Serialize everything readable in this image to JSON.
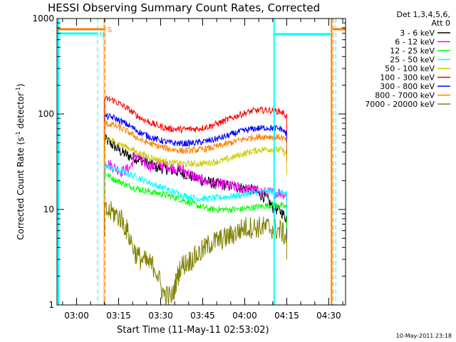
{
  "chart_data": {
    "type": "line",
    "title": "HESSI Observing Summary Count Rates, Corrected",
    "xlabel": "Start Time (11-May-11 02:53:02)",
    "ylabel_main": "Corrected Count Rate (s",
    "ylabel_sup1": "-1",
    "ylabel_mid": " detector",
    "ylabel_sup2": "-1",
    "ylabel_end": ")",
    "yscale": "log",
    "ylim": [
      1,
      1000
    ],
    "y_ticks": [
      {
        "value": 1,
        "label": "1"
      },
      {
        "value": 10,
        "label": "10"
      },
      {
        "value": 100,
        "label": "100"
      },
      {
        "value": 1000,
        "label": "1000"
      }
    ],
    "x_start_label": "02:53:02",
    "xlim_minutes": [
      0,
      103
    ],
    "x_ticks": [
      {
        "minute": 7,
        "label": "03:00"
      },
      {
        "minute": 22,
        "label": "03:15"
      },
      {
        "minute": 37,
        "label": "03:30"
      },
      {
        "minute": 52,
        "label": "03:45"
      },
      {
        "minute": 67,
        "label": "04:00"
      },
      {
        "minute": 82,
        "label": "04:15"
      },
      {
        "minute": 97,
        "label": "04:30"
      }
    ],
    "legend": {
      "header_line1": "Det 1,3,4,5,6,",
      "header_line2": "Att 0",
      "placement": "right"
    },
    "series": [
      {
        "name": "3 - 6 keV",
        "color": "#000000",
        "points": [
          [
            17,
            55
          ],
          [
            20,
            47
          ],
          [
            23,
            40
          ],
          [
            26,
            36
          ],
          [
            30,
            33
          ],
          [
            35,
            28
          ],
          [
            40,
            26
          ],
          [
            45,
            24
          ],
          [
            50,
            21
          ],
          [
            55,
            19
          ],
          [
            60,
            18
          ],
          [
            65,
            17
          ],
          [
            70,
            16
          ],
          [
            75,
            13
          ],
          [
            77,
            10.5
          ],
          [
            80,
            9.5
          ],
          [
            82,
            8
          ]
        ]
      },
      {
        "name": "6 - 12 keV",
        "color": "#ff00ff",
        "points": [
          [
            17,
            32
          ],
          [
            20,
            28
          ],
          [
            23,
            25
          ],
          [
            26,
            27
          ],
          [
            28,
            38
          ],
          [
            30,
            32
          ],
          [
            34,
            28
          ],
          [
            37,
            30
          ],
          [
            40,
            28
          ],
          [
            45,
            26
          ],
          [
            50,
            21
          ],
          [
            55,
            19
          ],
          [
            60,
            18
          ],
          [
            65,
            17
          ],
          [
            70,
            16
          ],
          [
            75,
            15
          ],
          [
            80,
            15
          ],
          [
            82,
            14
          ]
        ]
      },
      {
        "name": "12 - 25 keV",
        "color": "#00ff00",
        "points": [
          [
            17,
            24
          ],
          [
            20,
            21
          ],
          [
            25,
            18
          ],
          [
            30,
            16
          ],
          [
            35,
            15
          ],
          [
            40,
            14
          ],
          [
            45,
            12.5
          ],
          [
            50,
            11
          ],
          [
            55,
            10
          ],
          [
            60,
            10
          ],
          [
            65,
            10
          ],
          [
            70,
            10.5
          ],
          [
            75,
            11
          ],
          [
            80,
            11
          ],
          [
            82,
            10.5
          ]
        ]
      },
      {
        "name": "25 - 50 keV",
        "color": "#00ffff",
        "points": [
          [
            17,
            29
          ],
          [
            20,
            27
          ],
          [
            25,
            24
          ],
          [
            30,
            21
          ],
          [
            35,
            18
          ],
          [
            40,
            16
          ],
          [
            45,
            14
          ],
          [
            50,
            13
          ],
          [
            55,
            13
          ],
          [
            60,
            13.5
          ],
          [
            65,
            14
          ],
          [
            70,
            15
          ],
          [
            75,
            15.5
          ],
          [
            80,
            15
          ],
          [
            82,
            14.5
          ]
        ]
      },
      {
        "name": "50 - 100 keV",
        "color": "#cccc00",
        "points": [
          [
            17,
            55
          ],
          [
            20,
            52
          ],
          [
            25,
            45
          ],
          [
            30,
            38
          ],
          [
            35,
            34
          ],
          [
            40,
            31
          ],
          [
            45,
            30
          ],
          [
            50,
            30
          ],
          [
            55,
            31
          ],
          [
            60,
            33
          ],
          [
            65,
            37
          ],
          [
            70,
            41
          ],
          [
            75,
            43
          ],
          [
            80,
            42
          ],
          [
            82,
            38
          ]
        ]
      },
      {
        "name": "100 - 300 keV",
        "color": "#ff0000",
        "points": [
          [
            17,
            145
          ],
          [
            20,
            140
          ],
          [
            25,
            115
          ],
          [
            30,
            90
          ],
          [
            35,
            77
          ],
          [
            40,
            70
          ],
          [
            45,
            69
          ],
          [
            50,
            70
          ],
          [
            55,
            75
          ],
          [
            60,
            85
          ],
          [
            65,
            98
          ],
          [
            70,
            108
          ],
          [
            75,
            110
          ],
          [
            80,
            106
          ],
          [
            82,
            95
          ]
        ]
      },
      {
        "name": "300 - 800 keV",
        "color": "#0000ff",
        "points": [
          [
            17,
            95
          ],
          [
            20,
            92
          ],
          [
            25,
            78
          ],
          [
            30,
            63
          ],
          [
            35,
            55
          ],
          [
            40,
            50
          ],
          [
            45,
            49
          ],
          [
            50,
            50
          ],
          [
            55,
            53
          ],
          [
            60,
            58
          ],
          [
            65,
            65
          ],
          [
            70,
            70
          ],
          [
            75,
            72
          ],
          [
            80,
            70
          ],
          [
            82,
            62
          ]
        ]
      },
      {
        "name": "800 - 7000 keV",
        "color": "#ff8000",
        "points": [
          [
            17,
            80
          ],
          [
            20,
            77
          ],
          [
            25,
            66
          ],
          [
            30,
            53
          ],
          [
            35,
            47
          ],
          [
            40,
            43
          ],
          [
            45,
            41
          ],
          [
            50,
            42
          ],
          [
            55,
            44
          ],
          [
            60,
            48
          ],
          [
            65,
            53
          ],
          [
            70,
            57
          ],
          [
            75,
            58
          ],
          [
            80,
            57
          ],
          [
            82,
            52
          ]
        ]
      },
      {
        "name": "7000 - 20000 keV",
        "color": "#808000",
        "points": [
          [
            17,
            9.5
          ],
          [
            20,
            9.3
          ],
          [
            23,
            8
          ],
          [
            25,
            6
          ],
          [
            28,
            3.5
          ],
          [
            30,
            3
          ],
          [
            35,
            2.5
          ],
          [
            38,
            1.3
          ],
          [
            41,
            1.2
          ],
          [
            44,
            2.5
          ],
          [
            48,
            3
          ],
          [
            51,
            3.5
          ],
          [
            55,
            4.5
          ],
          [
            60,
            5
          ],
          [
            63,
            5.5
          ],
          [
            67,
            6.5
          ],
          [
            70,
            6.5
          ],
          [
            75,
            6.5
          ],
          [
            78,
            6.2
          ],
          [
            80,
            6
          ],
          [
            82,
            5
          ]
        ]
      }
    ],
    "annotations": {
      "S_label": "S",
      "N_label": "N",
      "solid_cyan_minutes": [
        0.5,
        77.5
      ],
      "dashed_cyan_minutes": [
        14.5,
        99.5
      ],
      "dashed_orange_minutes": [
        17.2,
        98.5
      ],
      "solid_orange_minutes": [
        16.8,
        98
      ],
      "footer_timestamp": "10-May-2011 23:18"
    }
  }
}
